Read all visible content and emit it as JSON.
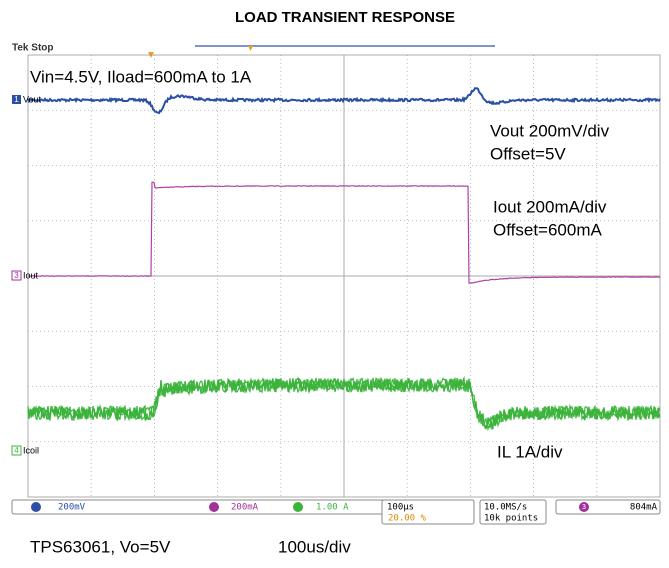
{
  "title": "LOAD TRANSIENT RESPONSE",
  "scope": {
    "status": "Tek Stop",
    "annotations": [
      "Vin=4.5V, Iload=600mA to 1A",
      "Vout 200mV/div",
      "Offset=5V",
      "Iout 200mA/div",
      "Offset=600mA",
      "IL 1A/div"
    ],
    "channels": [
      {
        "number": "1",
        "label": "Vout"
      },
      {
        "number": "3",
        "label": "Iout"
      },
      {
        "number": "4",
        "label": "Icoil"
      }
    ],
    "status_bar": {
      "ch1_scale": "200mV",
      "ch3_scale": "200mA",
      "ch4_scale": "1.00 A",
      "timebase": "100µs",
      "trigger_position": "20.00 %",
      "sample_rate": "10.0MS/s",
      "record_length": "10k points",
      "trigger_channel": "3",
      "trigger_level": "804mA"
    }
  },
  "caption": {
    "device": "TPS63061, Vo=5V",
    "timebase": "100us/div"
  }
}
